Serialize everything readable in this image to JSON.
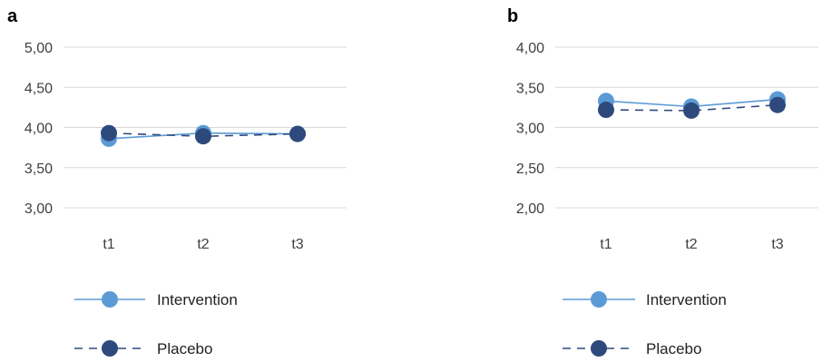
{
  "chart_data": [
    {
      "type": "line",
      "panel_label": "a",
      "categories": [
        "t1",
        "t2",
        "t3"
      ],
      "ylim": [
        3.0,
        5.0
      ],
      "yticks": [
        3.0,
        3.5,
        4.0,
        4.5,
        5.0
      ],
      "ytick_labels": [
        "3,00",
        "3,50",
        "4,00",
        "4,50",
        "5,00"
      ],
      "grid": true,
      "legend_position": "bottom",
      "series": [
        {
          "name": "Intervention",
          "values": [
            3.86,
            3.93,
            3.92
          ],
          "color": "#5b9bd5",
          "line_style": "solid"
        },
        {
          "name": "Placebo",
          "values": [
            3.93,
            3.89,
            3.92
          ],
          "color": "#2e4a7d",
          "line_style": "dashed"
        }
      ]
    },
    {
      "type": "line",
      "panel_label": "b",
      "categories": [
        "t1",
        "t2",
        "t3"
      ],
      "ylim": [
        2.0,
        4.0
      ],
      "yticks": [
        2.0,
        2.5,
        3.0,
        3.5,
        4.0
      ],
      "ytick_labels": [
        "2,00",
        "2,50",
        "3,00",
        "3,50",
        "4,00"
      ],
      "grid": true,
      "legend_position": "bottom",
      "series": [
        {
          "name": "Intervention",
          "values": [
            3.33,
            3.26,
            3.35
          ],
          "color": "#5b9bd5",
          "line_style": "solid"
        },
        {
          "name": "Placebo",
          "values": [
            3.22,
            3.21,
            3.28
          ],
          "color": "#2e4a7d",
          "line_style": "dashed"
        }
      ]
    }
  ]
}
